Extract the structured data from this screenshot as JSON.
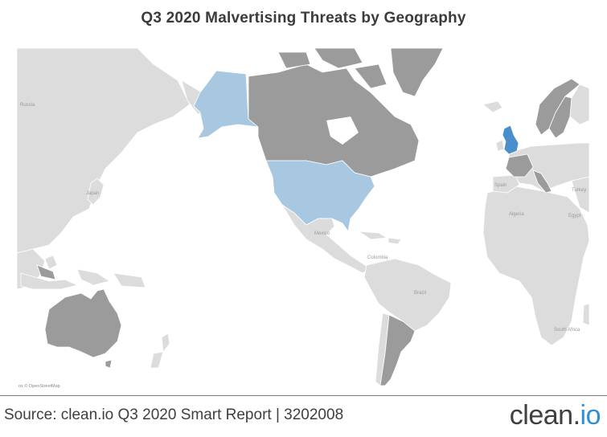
{
  "title": "Q3 2020 Malvertising Threats by Geography",
  "attribution": "ox © OpenStreetMap",
  "source": "Source: clean.io Q3 2020 Smart Report | 3202008",
  "brand": {
    "main": "clean.",
    "accent": "io"
  },
  "colors": {
    "land_default": "#dcdcdc",
    "land_dark": "#9b9b9b",
    "land_light_blue": "#a8c8e2",
    "land_blue": "#4a8fcb",
    "border": "#ffffff",
    "accent": "#2f8fd2"
  },
  "map_labels": {
    "russia": "Russia",
    "japan": "Japan",
    "mexico": "Mexico",
    "colombia": "Colombia",
    "brazil": "Brazil",
    "spain": "Spain",
    "turkey": "Turkey",
    "algeria": "Algeria",
    "egypt": "Egypt",
    "south_africa": "South Africa"
  },
  "legend_note": {
    "highlighted_dark_gray": [
      "Canada",
      "Greenland",
      "Australia",
      "Argentina",
      "France",
      "Italy",
      "Norway",
      "Sweden"
    ],
    "highlighted_light_blue": [
      "United States"
    ],
    "highlighted_blue": [
      "United Kingdom"
    ]
  }
}
